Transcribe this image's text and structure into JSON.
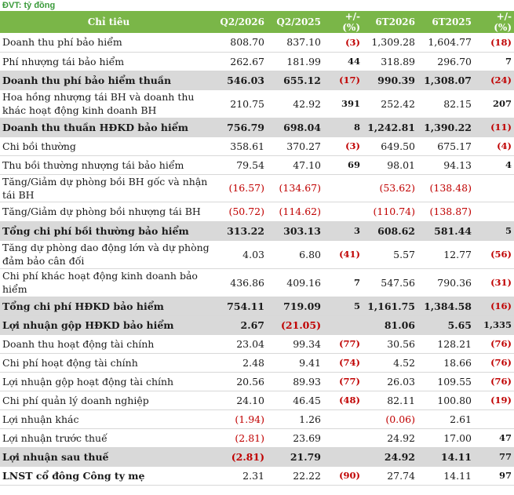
{
  "unit_label": "ĐVT: tỷ đồng",
  "columns": [
    "Chỉ tiêu",
    "Q2/2026",
    "Q2/2025",
    "+/- (%)",
    "6T2026",
    "6T2025",
    "+/- (%)"
  ],
  "rows": [
    {
      "label": "Doanh thu phí bảo hiểm",
      "bold": false,
      "values": [
        "808.70",
        "837.10",
        "(3)",
        "1,309.28",
        "1,604.77",
        "(18)"
      ],
      "h": 24
    },
    {
      "label": "Phí nhượng tái bảo hiểm",
      "bold": false,
      "values": [
        "262.67",
        "181.99",
        "44",
        "318.89",
        "296.70",
        "7"
      ],
      "h": 24
    },
    {
      "label": "Doanh thu phí bảo hiểm thuần",
      "bold": true,
      "values": [
        "546.03",
        "655.12",
        "(17)",
        "990.39",
        "1,308.07",
        "(24)"
      ],
      "h": 24
    },
    {
      "label": "Hoa hồng nhượng tái BH và doanh thu khác hoạt động kinh doanh BH",
      "bold": false,
      "values": [
        "210.75",
        "42.92",
        "391",
        "252.42",
        "82.15",
        "207"
      ],
      "h": 36
    },
    {
      "label": "Doanh thu thuần HĐKD bảo hiểm",
      "bold": true,
      "values": [
        "756.79",
        "698.04",
        "8",
        "1,242.81",
        "1,390.22",
        "(11)"
      ],
      "h": 24
    },
    {
      "label": "Chi bồi thường",
      "bold": false,
      "values": [
        "358.61",
        "370.27",
        "(3)",
        "649.50",
        "675.17",
        "(4)"
      ],
      "h": 24
    },
    {
      "label": "Thu bồi thường nhượng tái bảo hiểm",
      "bold": false,
      "values": [
        "79.54",
        "47.10",
        "69",
        "98.01",
        "94.13",
        "4"
      ],
      "h": 24
    },
    {
      "label": "Tăng/Giảm dự phòng bồi BH gốc và nhận tái BH",
      "bold": false,
      "values": [
        "(16.57)",
        "(134.67)",
        "",
        "(53.62)",
        "(138.48)",
        ""
      ],
      "h": 34
    },
    {
      "label": "Tăng/Giảm dự phòng bồi nhượng tái BH",
      "bold": false,
      "values": [
        "(50.72)",
        "(114.62)",
        "",
        "(110.74)",
        "(138.87)",
        ""
      ],
      "h": 25
    },
    {
      "label": "Tổng chi phí bồi thường bảo hiểm",
      "bold": true,
      "values": [
        "313.22",
        "303.13",
        "3",
        "608.62",
        "581.44",
        "5"
      ],
      "h": 24
    },
    {
      "label": "Tăng dự phòng dao động lớn và dự phòng đảm bảo cân đối",
      "bold": false,
      "values": [
        "4.03",
        "6.80",
        "(41)",
        "5.57",
        "12.77",
        "(56)"
      ],
      "h": 36
    },
    {
      "label": "Chi phí khác hoạt động kinh doanh bảo hiểm",
      "bold": false,
      "values": [
        "436.86",
        "409.16",
        "7",
        "547.56",
        "790.36",
        "(31)"
      ],
      "h": 36
    },
    {
      "label": "Tổng chi phí HĐKD bảo hiểm",
      "bold": true,
      "values": [
        "754.11",
        "719.09",
        "5",
        "1,161.75",
        "1,384.58",
        "(16)"
      ],
      "h": 24
    },
    {
      "label": "Lợi nhuận gộp HĐKD bảo hiểm",
      "bold": true,
      "values": [
        "2.67",
        "(21.05)",
        "",
        "81.06",
        "5.65",
        "1,335"
      ],
      "h": 24
    },
    {
      "label": "Doanh thu hoạt động tài chính",
      "bold": false,
      "values": [
        "23.04",
        "99.34",
        "(77)",
        "30.56",
        "128.21",
        "(76)"
      ],
      "h": 24
    },
    {
      "label": "Chi phí hoạt động tài chính",
      "bold": false,
      "values": [
        "2.48",
        "9.41",
        "(74)",
        "4.52",
        "18.66",
        "(76)"
      ],
      "h": 24
    },
    {
      "label": "Lợi nhuận gộp hoạt động tài chính",
      "bold": false,
      "values": [
        "20.56",
        "89.93",
        "(77)",
        "26.03",
        "109.55",
        "(76)"
      ],
      "h": 24
    },
    {
      "label": "Chi phí quản lý doanh nghiệp",
      "bold": false,
      "values": [
        "24.10",
        "46.45",
        "(48)",
        "82.11",
        "100.80",
        "(19)"
      ],
      "h": 24
    },
    {
      "label": "Lợi nhuận khác",
      "bold": false,
      "values": [
        "(1.94)",
        "1.26",
        "",
        "(0.06)",
        "2.61",
        ""
      ],
      "h": 24
    },
    {
      "label": "Lợi nhuận trước thuế",
      "bold": false,
      "values": [
        "(2.81)",
        "23.69",
        "",
        "24.92",
        "17.00",
        "47"
      ],
      "h": 24
    },
    {
      "label": "Lợi nhuận sau thuế",
      "bold": true,
      "values": [
        "(2.81)",
        "21.79",
        "",
        "24.92",
        "14.11",
        "77"
      ],
      "h": 24
    },
    {
      "label": "LNST cổ đông Công ty mẹ",
      "bold": false,
      "boldlabel": true,
      "values": [
        "2.31",
        "22.22",
        "(90)",
        "27.74",
        "14.11",
        "97"
      ],
      "h": 24
    }
  ]
}
